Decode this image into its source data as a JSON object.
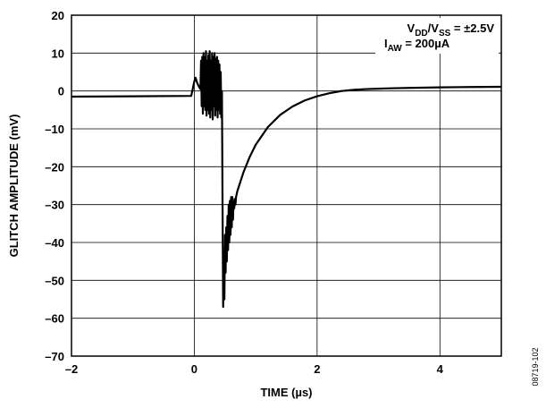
{
  "chart_data": {
    "type": "line",
    "xlabel": "TIME (µs)",
    "ylabel": "GLITCH AMPLITUDE (mV)",
    "xlim": [
      -2,
      5
    ],
    "ylim": [
      -70,
      20
    ],
    "x_ticks": [
      -2,
      0,
      2,
      4
    ],
    "y_ticks": [
      20,
      10,
      0,
      -10,
      -20,
      -30,
      -40,
      -50,
      -60,
      -70
    ],
    "x_tick_labels": [
      "–2",
      "0",
      "2",
      "4"
    ],
    "y_tick_labels": [
      "20",
      "10",
      "0",
      "–10",
      "–20",
      "–30",
      "–40",
      "–50",
      "–60",
      "–70"
    ],
    "grid": true,
    "annotation": {
      "line1": {
        "a": "V",
        "a_sub": "DD",
        "b": "/V",
        "b_sub": "SS",
        "rest": " = ±2.5V"
      },
      "line2": {
        "a": "I",
        "a_sub": "AW",
        "rest": " = 200µA"
      }
    },
    "figure_id": "08719-102",
    "series": [
      {
        "color": "#000000",
        "x": [
          -2.0,
          -1.0,
          -0.05,
          0.0,
          0.02,
          0.05,
          0.08,
          0.1,
          0.11,
          0.12,
          0.13,
          0.14,
          0.15,
          0.16,
          0.17,
          0.18,
          0.19,
          0.2,
          0.21,
          0.22,
          0.23,
          0.24,
          0.25,
          0.26,
          0.27,
          0.28,
          0.29,
          0.3,
          0.31,
          0.32,
          0.33,
          0.34,
          0.35,
          0.36,
          0.37,
          0.38,
          0.39,
          0.4,
          0.41,
          0.42,
          0.43,
          0.44,
          0.45,
          0.46,
          0.47,
          0.48,
          0.49,
          0.5,
          0.51,
          0.52,
          0.53,
          0.54,
          0.55,
          0.56,
          0.57,
          0.58,
          0.59,
          0.6,
          0.61,
          0.62,
          0.63,
          0.64,
          0.65,
          0.66,
          0.67,
          0.68,
          0.7,
          0.8,
          0.9,
          1.0,
          1.2,
          1.4,
          1.6,
          1.8,
          2.0,
          2.2,
          2.4,
          2.6,
          2.8,
          3.0,
          3.2,
          3.5,
          3.8,
          4.0,
          4.5,
          5.0
        ],
        "y": [
          -1.5,
          -1.4,
          -1.3,
          2.5,
          3.5,
          2.0,
          1.0,
          0.5,
          8.0,
          -4.0,
          9.0,
          -6.0,
          10.0,
          -4.0,
          9.0,
          -5.0,
          10.5,
          -6.5,
          8.0,
          -5.0,
          9.5,
          -6.0,
          10.5,
          -7.0,
          8.0,
          -5.0,
          10.0,
          -7.5,
          9.0,
          -4.0,
          10.0,
          -6.5,
          8.5,
          -5.0,
          9.0,
          -7.0,
          8.0,
          -5.0,
          7.0,
          -6.0,
          5.0,
          -7.0,
          0.0,
          -30.0,
          -57.0,
          -42.0,
          -55.0,
          -38.0,
          -48.0,
          -36.0,
          -45.0,
          -33.0,
          -42.0,
          -30.0,
          -40.0,
          -29.0,
          -38.0,
          -28.0,
          -36.0,
          -28.0,
          -34.0,
          -29.0,
          -31.0,
          -28.5,
          -30.0,
          -28.0,
          -26.5,
          -21.5,
          -17.5,
          -14.2,
          -9.5,
          -6.3,
          -4.1,
          -2.5,
          -1.4,
          -0.6,
          0.0,
          0.3,
          0.5,
          0.6,
          0.7,
          0.8,
          0.9,
          0.95,
          1.05,
          1.1
        ]
      }
    ]
  }
}
